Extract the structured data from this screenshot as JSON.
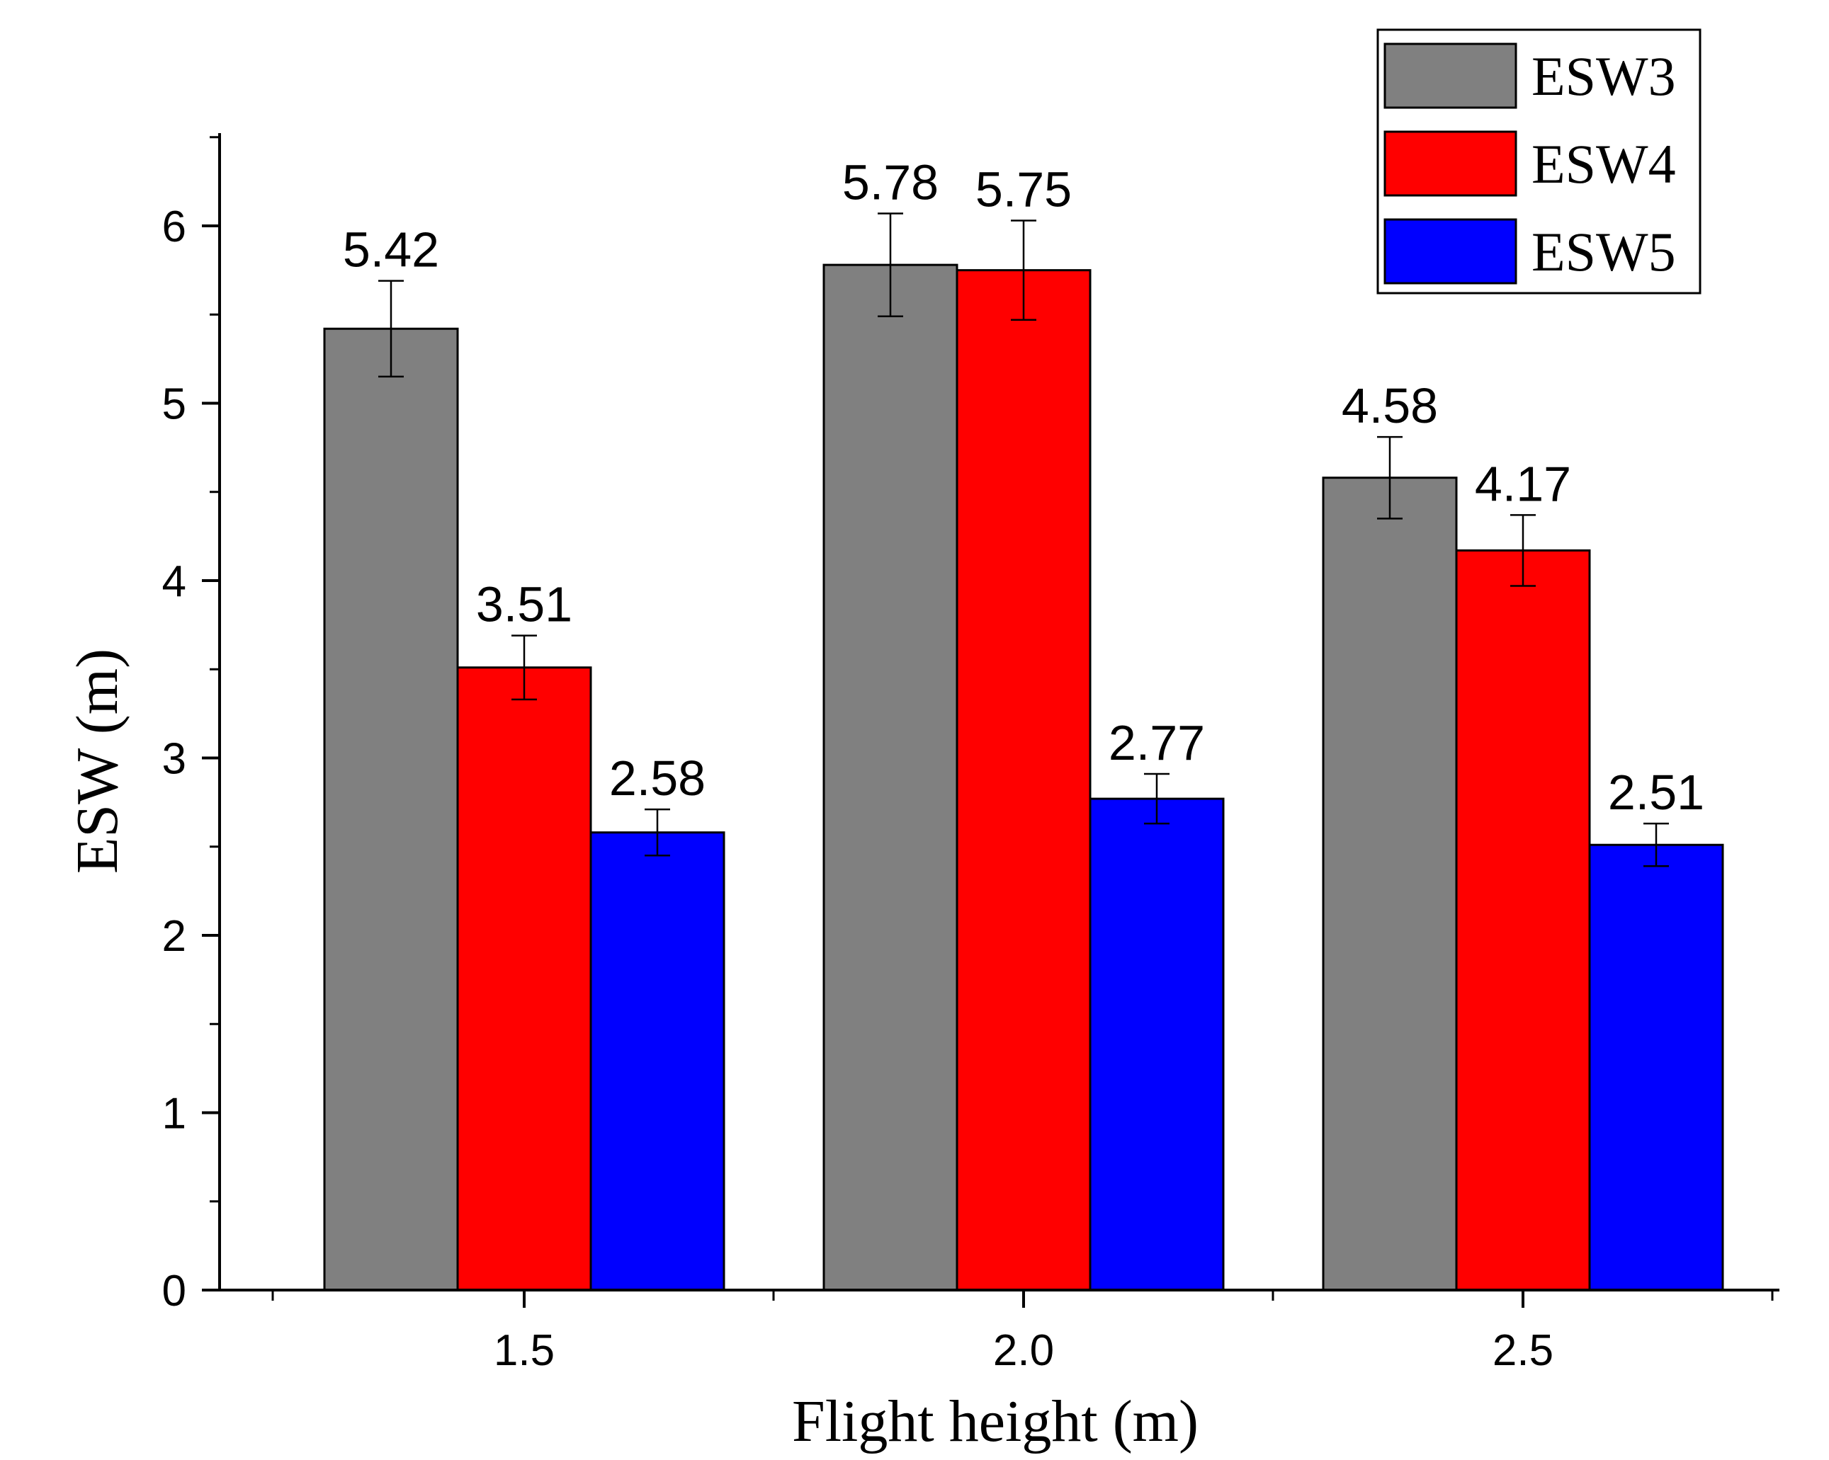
{
  "chart_data": {
    "type": "bar",
    "title": "",
    "xlabel": "Flight height (m)",
    "ylabel": "ESW (m)",
    "categories": [
      "1.5",
      "2.0",
      "2.5"
    ],
    "ylim": [
      0,
      6.5
    ],
    "yticks": [
      "0",
      "1",
      "2",
      "3",
      "4",
      "5",
      "6"
    ],
    "legend_position": "top-right",
    "grid": false,
    "series": [
      {
        "name": "ESW3",
        "color": "#808080",
        "values": [
          5.42,
          5.78,
          4.58
        ],
        "labels": [
          "5.42",
          "5.78",
          "4.58"
        ],
        "errors": [
          0.27,
          0.29,
          0.23
        ]
      },
      {
        "name": "ESW4",
        "color": "#ff0000",
        "values": [
          3.51,
          5.75,
          4.17
        ],
        "labels": [
          "3.51",
          "5.75",
          "4.17"
        ],
        "errors": [
          0.18,
          0.28,
          0.2
        ]
      },
      {
        "name": "ESW5",
        "color": "#0000ff",
        "values": [
          2.58,
          2.77,
          2.51
        ],
        "labels": [
          "2.58",
          "2.77",
          "2.51"
        ],
        "errors": [
          0.13,
          0.14,
          0.12
        ]
      }
    ]
  }
}
